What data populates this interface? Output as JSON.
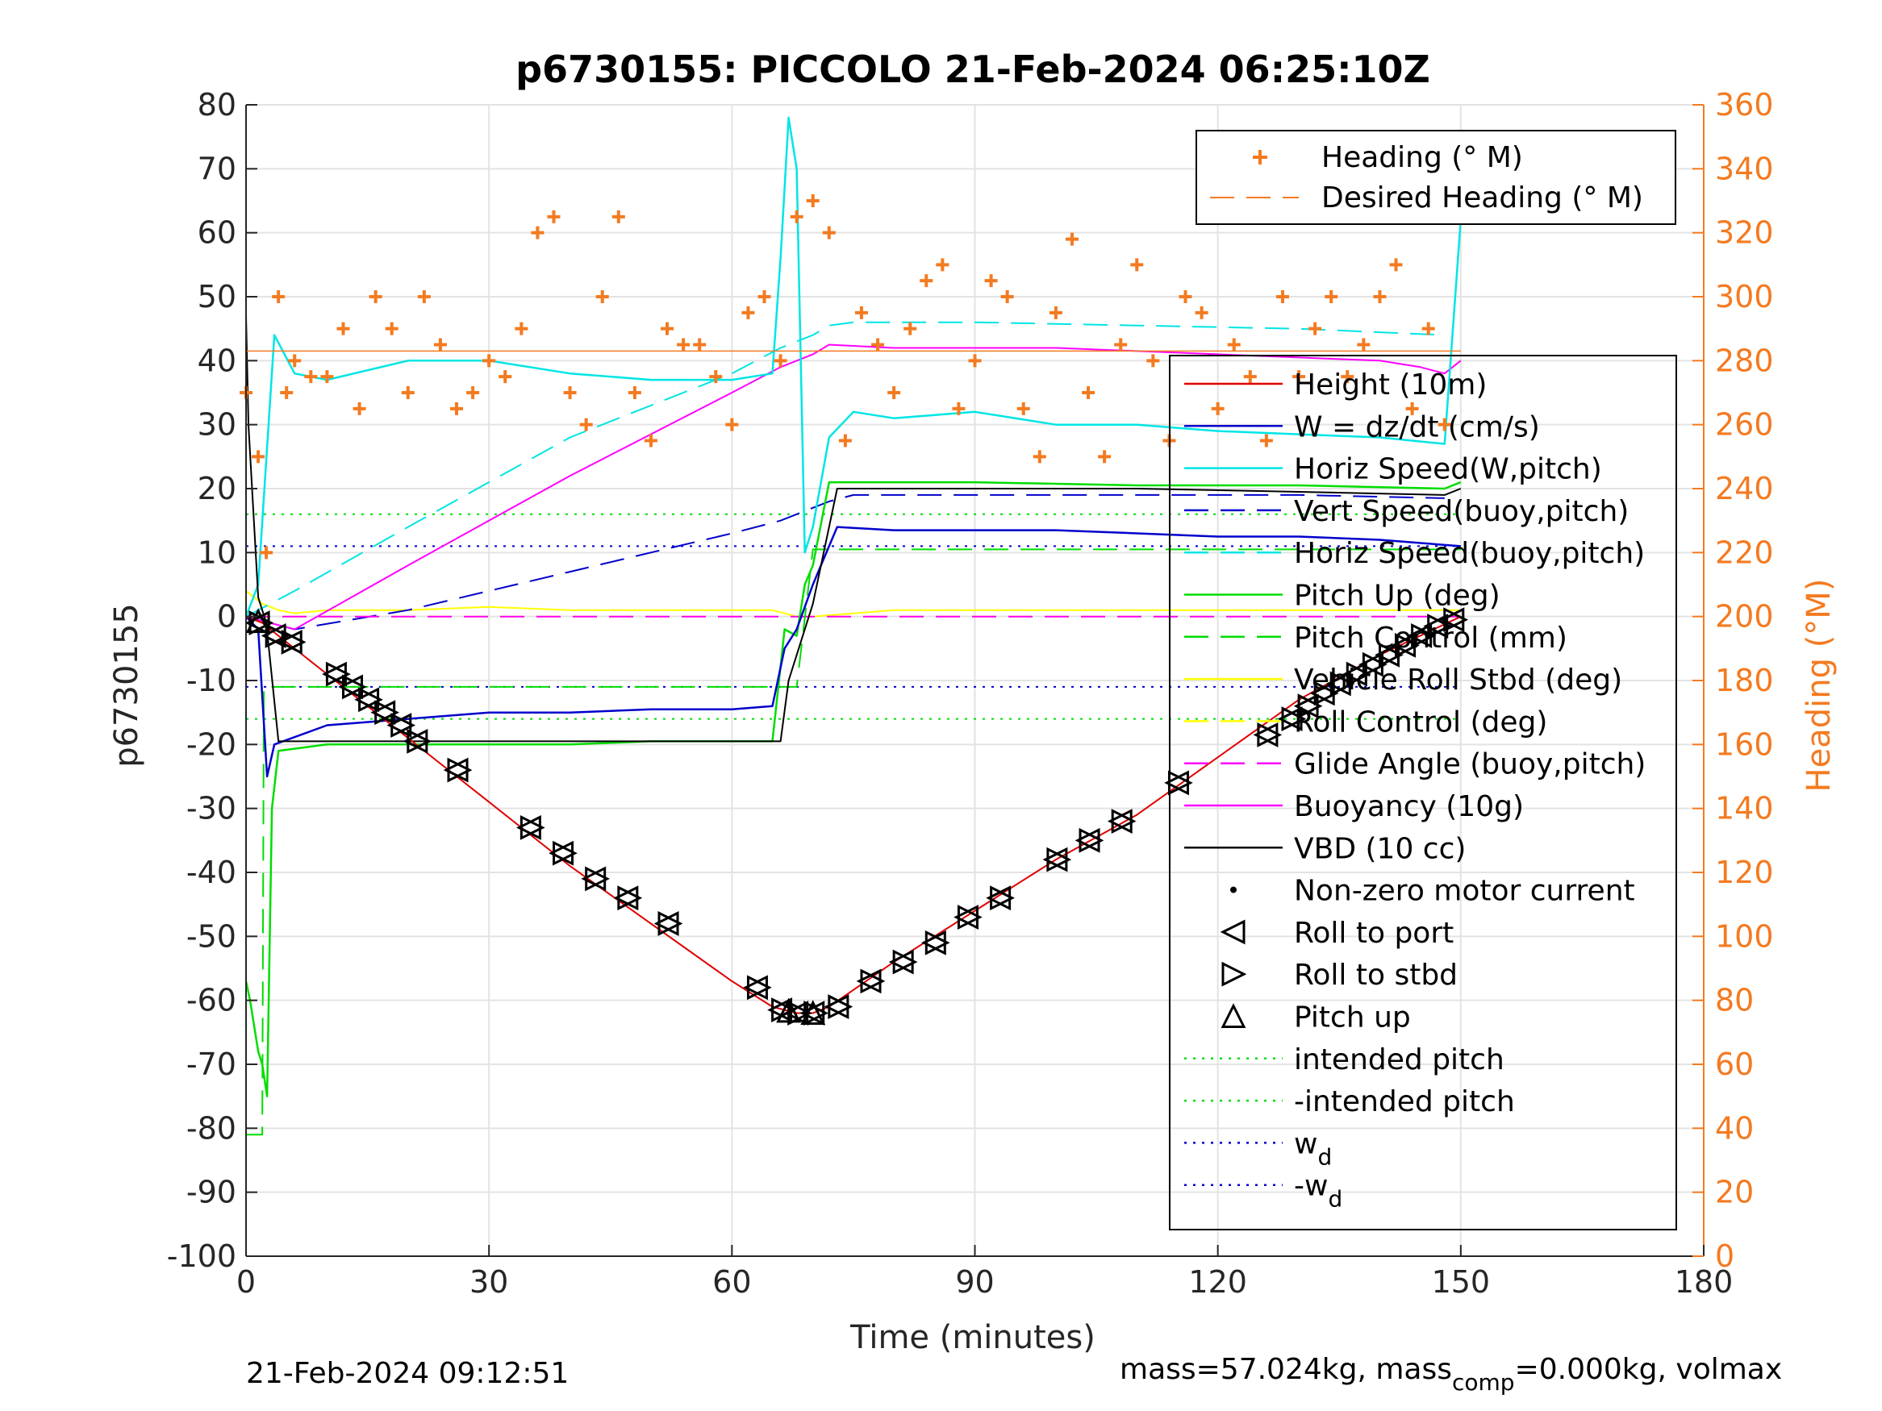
{
  "chart_data": {
    "type": "line",
    "title": "p6730155: PICCOLO 21-Feb-2024 06:25:10Z",
    "xlabel": "Time (minutes)",
    "ylabel": "p6730155",
    "ylabel_right": "Heading (°M)",
    "xlim": [
      0,
      180
    ],
    "ylim": [
      -100,
      80
    ],
    "ylim_right": [
      0,
      360
    ],
    "xticks": [
      "0",
      "30",
      "60",
      "90",
      "120",
      "150",
      "180"
    ],
    "yticks": [
      "80",
      "70",
      "60",
      "50",
      "40",
      "30",
      "20",
      "10",
      "0",
      "-10",
      "-20",
      "-30",
      "-40",
      "-50",
      "-60",
      "-70",
      "-80",
      "-90",
      "-100"
    ],
    "yticks_right": [
      "360",
      "340",
      "320",
      "300",
      "280",
      "260",
      "240",
      "220",
      "200",
      "180",
      "160",
      "140",
      "120",
      "100",
      "80",
      "60",
      "40",
      "20",
      "0"
    ],
    "grid": true,
    "colors": {
      "height": "#e00000",
      "w": "#0000cc",
      "horiz_speed": "#00e5e5",
      "vert_speed": "#0000cc",
      "pitch": "#00dd00",
      "roll": "#ffff00",
      "glide": "#ff00ff",
      "buoyancy": "#ff00ff",
      "vbd": "#000000",
      "heading": "#f47a20"
    },
    "legend_top": {
      "placement": "top-right",
      "entries": [
        "Heading (° M)",
        "Desired Heading (° M)"
      ]
    },
    "legend_main": {
      "placement": "right",
      "entries": [
        "Height (10m)",
        "W = dz/dt (cm/s)",
        "Horiz Speed(W,pitch)",
        "Vert Speed(buoy,pitch)",
        "Horiz Speed(buoy,pitch)",
        "Pitch Up (deg)",
        "Pitch Control (mm)",
        "Vehicle Roll Stbd (deg)",
        "Roll Control (deg)",
        "Glide Angle (buoy,pitch)",
        "Buoyancy (10g)",
        "VBD (10 cc)",
        "Non-zero motor current",
        "Roll to port",
        "Roll to stbd",
        "Pitch up",
        "intended pitch",
        "-intended pitch",
        "w",
        "-w"
      ],
      "subscript": "d"
    },
    "series": [
      {
        "name": "Height (10m)",
        "x": [
          0,
          2,
          10,
          20,
          30,
          40,
          50,
          60,
          65,
          68,
          70,
          72,
          80,
          90,
          100,
          110,
          120,
          130,
          140,
          150
        ],
        "values": [
          0,
          -1,
          -9,
          -19,
          -29,
          -39,
          -48,
          -57,
          -61,
          -62,
          -62,
          -61,
          -54,
          -46,
          -38,
          -31,
          -22,
          -13,
          -6,
          0
        ]
      },
      {
        "name": "W = dz/dt (cm/s)",
        "x": [
          0,
          1.5,
          2.6,
          3.5,
          10,
          20,
          30,
          40,
          50,
          60,
          65,
          66.5,
          68,
          70,
          73,
          80,
          90,
          100,
          110,
          120,
          130,
          140,
          150
        ],
        "values": [
          0,
          -2,
          -25,
          -20,
          -17,
          -16,
          -15,
          -15,
          -14.5,
          -14.5,
          -14,
          -5,
          -2,
          5,
          14,
          13.5,
          13.5,
          13.5,
          13,
          12.5,
          12.5,
          12,
          11
        ]
      },
      {
        "name": "Horiz Speed(W,pitch)",
        "x": [
          0,
          1.5,
          3.5,
          6,
          10,
          20,
          30,
          40,
          50,
          60,
          65,
          66,
          67,
          68,
          69,
          70,
          72,
          75,
          80,
          90,
          100,
          110,
          120,
          130,
          140,
          148,
          150
        ],
        "values": [
          0,
          5,
          44,
          38,
          37,
          40,
          40,
          38,
          37,
          37,
          38,
          56,
          78,
          70,
          10,
          14,
          28,
          32,
          31,
          32,
          30,
          30,
          29,
          28.5,
          28,
          27,
          62
        ]
      },
      {
        "name": "Vert Speed(buoy,pitch)",
        "x": [
          0,
          3,
          6,
          20,
          40,
          60,
          66,
          70,
          72,
          75,
          90,
          110,
          130,
          148
        ],
        "values": [
          0,
          -1,
          -2,
          1,
          7,
          13,
          15,
          17,
          18,
          19,
          19,
          19,
          19,
          18.5
        ]
      },
      {
        "name": "Horiz Speed(buoy,pitch)",
        "x": [
          0,
          3,
          6,
          20,
          40,
          60,
          66,
          70,
          72,
          75,
          90,
          110,
          130,
          148
        ],
        "values": [
          0,
          2,
          4,
          14,
          28,
          38,
          42,
          44,
          45.5,
          46,
          46,
          45.5,
          45,
          44
        ]
      },
      {
        "name": "Pitch Up (deg)",
        "x": [
          0,
          0.5,
          1.5,
          2,
          2.6,
          3.2,
          4,
          10,
          20,
          30,
          40,
          50,
          60,
          65,
          66.5,
          68,
          69,
          70,
          72,
          75,
          90,
          110,
          130,
          148,
          150
        ],
        "values": [
          -57,
          -60,
          -68,
          -70,
          -75,
          -30,
          -21,
          -20,
          -20,
          -20,
          -20,
          -19.5,
          -19.5,
          -19.5,
          -2,
          -3,
          5,
          8,
          21,
          21,
          21,
          20.5,
          20.5,
          20,
          21
        ]
      },
      {
        "name": "Pitch Control (mm)",
        "x": [
          0,
          2,
          2.2,
          68,
          70,
          150
        ],
        "values": [
          -81,
          -81,
          -11,
          -11,
          10.5,
          10.5
        ]
      },
      {
        "name": "Vehicle Roll Stbd (deg)",
        "x": [
          0,
          2,
          4,
          6,
          10,
          20,
          30,
          40,
          50,
          60,
          65,
          68,
          70,
          80,
          90,
          100,
          110,
          120,
          130,
          140,
          150
        ],
        "values": [
          4,
          2,
          1,
          0.5,
          1,
          1,
          1.5,
          1,
          1,
          1,
          1,
          0,
          0,
          1,
          1,
          1,
          1,
          1,
          1,
          1,
          1
        ]
      },
      {
        "name": "Roll Control (deg)",
        "x": [
          0,
          150
        ],
        "values": [
          0,
          0
        ]
      },
      {
        "name": "Glide Angle (buoy,pitch)",
        "x": [
          0,
          150
        ],
        "values": [
          0,
          0
        ]
      },
      {
        "name": "Buoyancy (10g)",
        "x": [
          0,
          3,
          6,
          20,
          40,
          60,
          66,
          70,
          72,
          80,
          90,
          100,
          110,
          120,
          130,
          140,
          145,
          148,
          150
        ],
        "values": [
          0,
          -1,
          -2,
          8,
          22,
          35,
          39,
          41,
          42.5,
          42,
          42,
          42,
          41.5,
          41,
          40.5,
          40,
          39,
          38,
          40
        ]
      },
      {
        "name": "VBD (10 cc)",
        "x": [
          0,
          0.3,
          1.5,
          2.5,
          4,
          20,
          40,
          60,
          66,
          67,
          70,
          73,
          90,
          110,
          130,
          148,
          150
        ],
        "values": [
          47,
          30,
          3,
          -1,
          -19.5,
          -19.5,
          -19.5,
          -19.5,
          -19.5,
          -10,
          2,
          20,
          20,
          20,
          19.5,
          19,
          20
        ]
      },
      {
        "name": "Heading (° M)",
        "axis": "right",
        "x": [
          0,
          1.5,
          2.5,
          4,
          5,
          6,
          8,
          10,
          12,
          14,
          16,
          18,
          20,
          22,
          24,
          26,
          28,
          30,
          32,
          34,
          36,
          38,
          40,
          42,
          44,
          46,
          48,
          50,
          52,
          54,
          56,
          58,
          60,
          62,
          64,
          66,
          68,
          70,
          72,
          74,
          76,
          78,
          80,
          82,
          84,
          86,
          88,
          90,
          92,
          94,
          96,
          98,
          100,
          102,
          104,
          106,
          108,
          110,
          112,
          114,
          116,
          118,
          120,
          122,
          124,
          126,
          128,
          130,
          132,
          134,
          136,
          138,
          140,
          142,
          144,
          146,
          148,
          150
        ],
        "values": [
          270,
          250,
          220,
          300,
          270,
          280,
          275,
          275,
          290,
          265,
          300,
          290,
          270,
          300,
          285,
          265,
          270,
          280,
          275,
          290,
          320,
          325,
          270,
          260,
          300,
          325,
          270,
          255,
          290,
          285,
          285,
          275,
          260,
          295,
          300,
          280,
          325,
          330,
          320,
          255,
          295,
          285,
          270,
          290,
          305,
          310,
          265,
          280,
          305,
          300,
          265,
          250,
          295,
          318,
          270,
          250,
          285,
          310,
          280,
          255,
          300,
          295,
          265,
          285,
          275,
          255,
          300,
          275,
          290,
          300,
          275,
          285,
          300,
          310,
          265,
          290,
          260,
          330
        ]
      },
      {
        "name": "Desired Heading (° M)",
        "axis": "right",
        "x": [
          0,
          150
        ],
        "values": [
          283,
          283
        ]
      },
      {
        "name": "intended pitch",
        "x": [
          0,
          150
        ],
        "values": [
          16,
          16
        ]
      },
      {
        "name": "-intended pitch",
        "x": [
          0,
          150
        ],
        "values": [
          -16,
          -16
        ]
      },
      {
        "name": "w",
        "x": [
          0,
          150
        ],
        "values": [
          11,
          11
        ]
      },
      {
        "name": "-w",
        "x": [
          0,
          150
        ],
        "values": [
          -11,
          -11
        ]
      }
    ],
    "markers": {
      "roll_to_port": {
        "x": [
          1.5,
          3.5,
          5.5,
          11,
          13,
          15,
          17,
          19,
          21,
          26,
          35,
          39,
          43,
          47,
          52,
          63,
          66,
          68,
          70,
          73,
          77,
          81,
          85,
          89,
          93,
          100,
          104,
          108,
          115,
          126,
          129,
          131,
          133,
          135,
          137,
          139,
          141,
          143,
          145,
          147,
          149
        ],
        "y": [
          -1,
          -3,
          -4,
          -9,
          -11,
          -13,
          -15,
          -17,
          -19.5,
          -24,
          -33,
          -37,
          -41,
          -44,
          -48,
          -58,
          -61.5,
          -62,
          -62,
          -61,
          -57,
          -54,
          -51,
          -47,
          -44,
          -38,
          -35,
          -32,
          -26,
          -18.5,
          -16,
          -14,
          -12,
          -10.5,
          -9,
          -7.5,
          -6,
          -4.5,
          -3,
          -1.5,
          -0.5
        ]
      }
    },
    "annotation_left": "21-Feb-2024 09:12:51",
    "annotation_right": {
      "before": "mass=57.024kg, mass",
      "sub": "comp",
      "after": "=0.000kg, volmax"
    }
  }
}
